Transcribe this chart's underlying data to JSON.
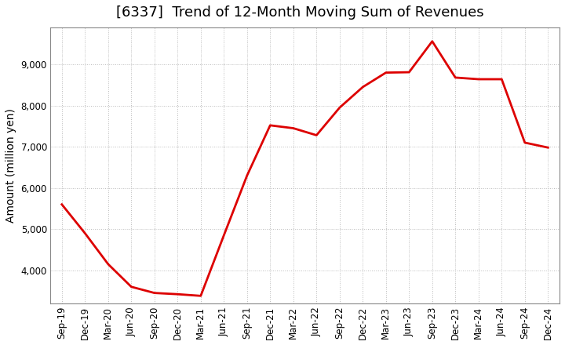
{
  "title": "[6337]  Trend of 12-Month Moving Sum of Revenues",
  "ylabel": "Amount (million yen)",
  "x_labels": [
    "Sep-19",
    "Dec-19",
    "Mar-20",
    "Jun-20",
    "Sep-20",
    "Dec-20",
    "Mar-21",
    "Jun-21",
    "Sep-21",
    "Dec-21",
    "Mar-22",
    "Jun-22",
    "Sep-22",
    "Dec-22",
    "Mar-23",
    "Jun-23",
    "Sep-23",
    "Dec-23",
    "Mar-24",
    "Jun-24",
    "Sep-24",
    "Dec-24"
  ],
  "y_values": [
    5600,
    4900,
    4150,
    3600,
    3450,
    3420,
    3380,
    4850,
    6300,
    7520,
    7450,
    7280,
    7950,
    8450,
    8800,
    8810,
    9560,
    8680,
    8640,
    8640,
    7100,
    6980
  ],
  "line_color": "#dd0000",
  "background_color": "#ffffff",
  "grid_color": "#bbbbbb",
  "ylim_min": 3200,
  "ylim_max": 9900,
  "yticks": [
    4000,
    5000,
    6000,
    7000,
    8000,
    9000
  ],
  "title_fontsize": 13,
  "axis_label_fontsize": 10,
  "tick_fontsize": 8.5
}
